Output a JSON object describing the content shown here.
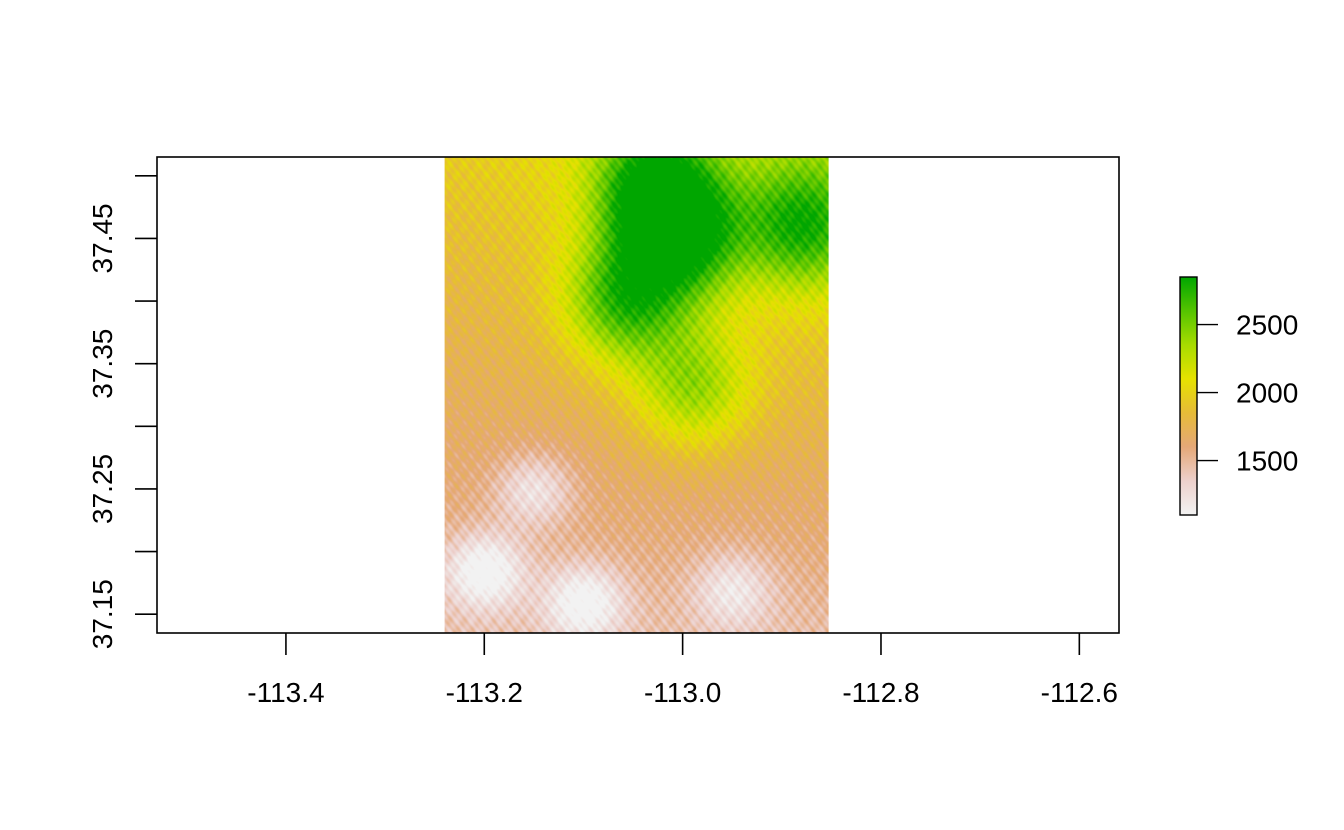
{
  "chart_data": {
    "type": "heatmap",
    "title": "",
    "xlabel": "",
    "ylabel": "",
    "xlim": [
      -113.53,
      -112.56
    ],
    "ylim": [
      37.135,
      37.515
    ],
    "raster_extent": {
      "xmin": -113.24,
      "xmax": -112.853,
      "ymin": 37.135,
      "ymax": 37.515
    },
    "x_ticks": [
      {
        "value": -113.4,
        "label": "-113.4"
      },
      {
        "value": -113.2,
        "label": "-113.2"
      },
      {
        "value": -113.0,
        "label": "-113.0"
      },
      {
        "value": -112.8,
        "label": "-112.8"
      },
      {
        "value": -112.6,
        "label": "-112.6"
      }
    ],
    "y_ticks": [
      {
        "value": 37.15,
        "label": "37.15"
      },
      {
        "value": 37.2,
        "label": ""
      },
      {
        "value": 37.25,
        "label": "37.25"
      },
      {
        "value": 37.3,
        "label": ""
      },
      {
        "value": 37.35,
        "label": "37.35"
      },
      {
        "value": 37.4,
        "label": ""
      },
      {
        "value": 37.45,
        "label": "37.45"
      },
      {
        "value": 37.5,
        "label": ""
      }
    ],
    "legend": {
      "placement": "right",
      "min": 1100,
      "max": 2850,
      "ticks": [
        {
          "value": 1500,
          "label": "1500"
        },
        {
          "value": 2000,
          "label": "2000"
        },
        {
          "value": 2500,
          "label": "2500"
        }
      ],
      "colors": [
        "#F2F2F2",
        "#EDD0CC",
        "#E5A878",
        "#E6BB38",
        "#E6E200",
        "#A8DC00",
        "#55C400",
        "#00A600"
      ]
    },
    "elevation_features": {
      "high_plateau_centers": [
        {
          "x": -113.03,
          "y": 37.49,
          "value": 2800
        },
        {
          "x": -113.06,
          "y": 37.4,
          "value": 2700
        },
        {
          "x": -113.0,
          "y": 37.45,
          "value": 2750
        },
        {
          "x": -112.88,
          "y": 37.46,
          "value": 2650
        },
        {
          "x": -112.99,
          "y": 37.33,
          "value": 2500
        }
      ],
      "canyon_lows": [
        {
          "x": -113.2,
          "y": 37.185,
          "value": 1150
        },
        {
          "x": -113.1,
          "y": 37.16,
          "value": 1200
        },
        {
          "x": -113.15,
          "y": 37.25,
          "value": 1300
        },
        {
          "x": -112.95,
          "y": 37.17,
          "value": 1350
        }
      ]
    }
  }
}
